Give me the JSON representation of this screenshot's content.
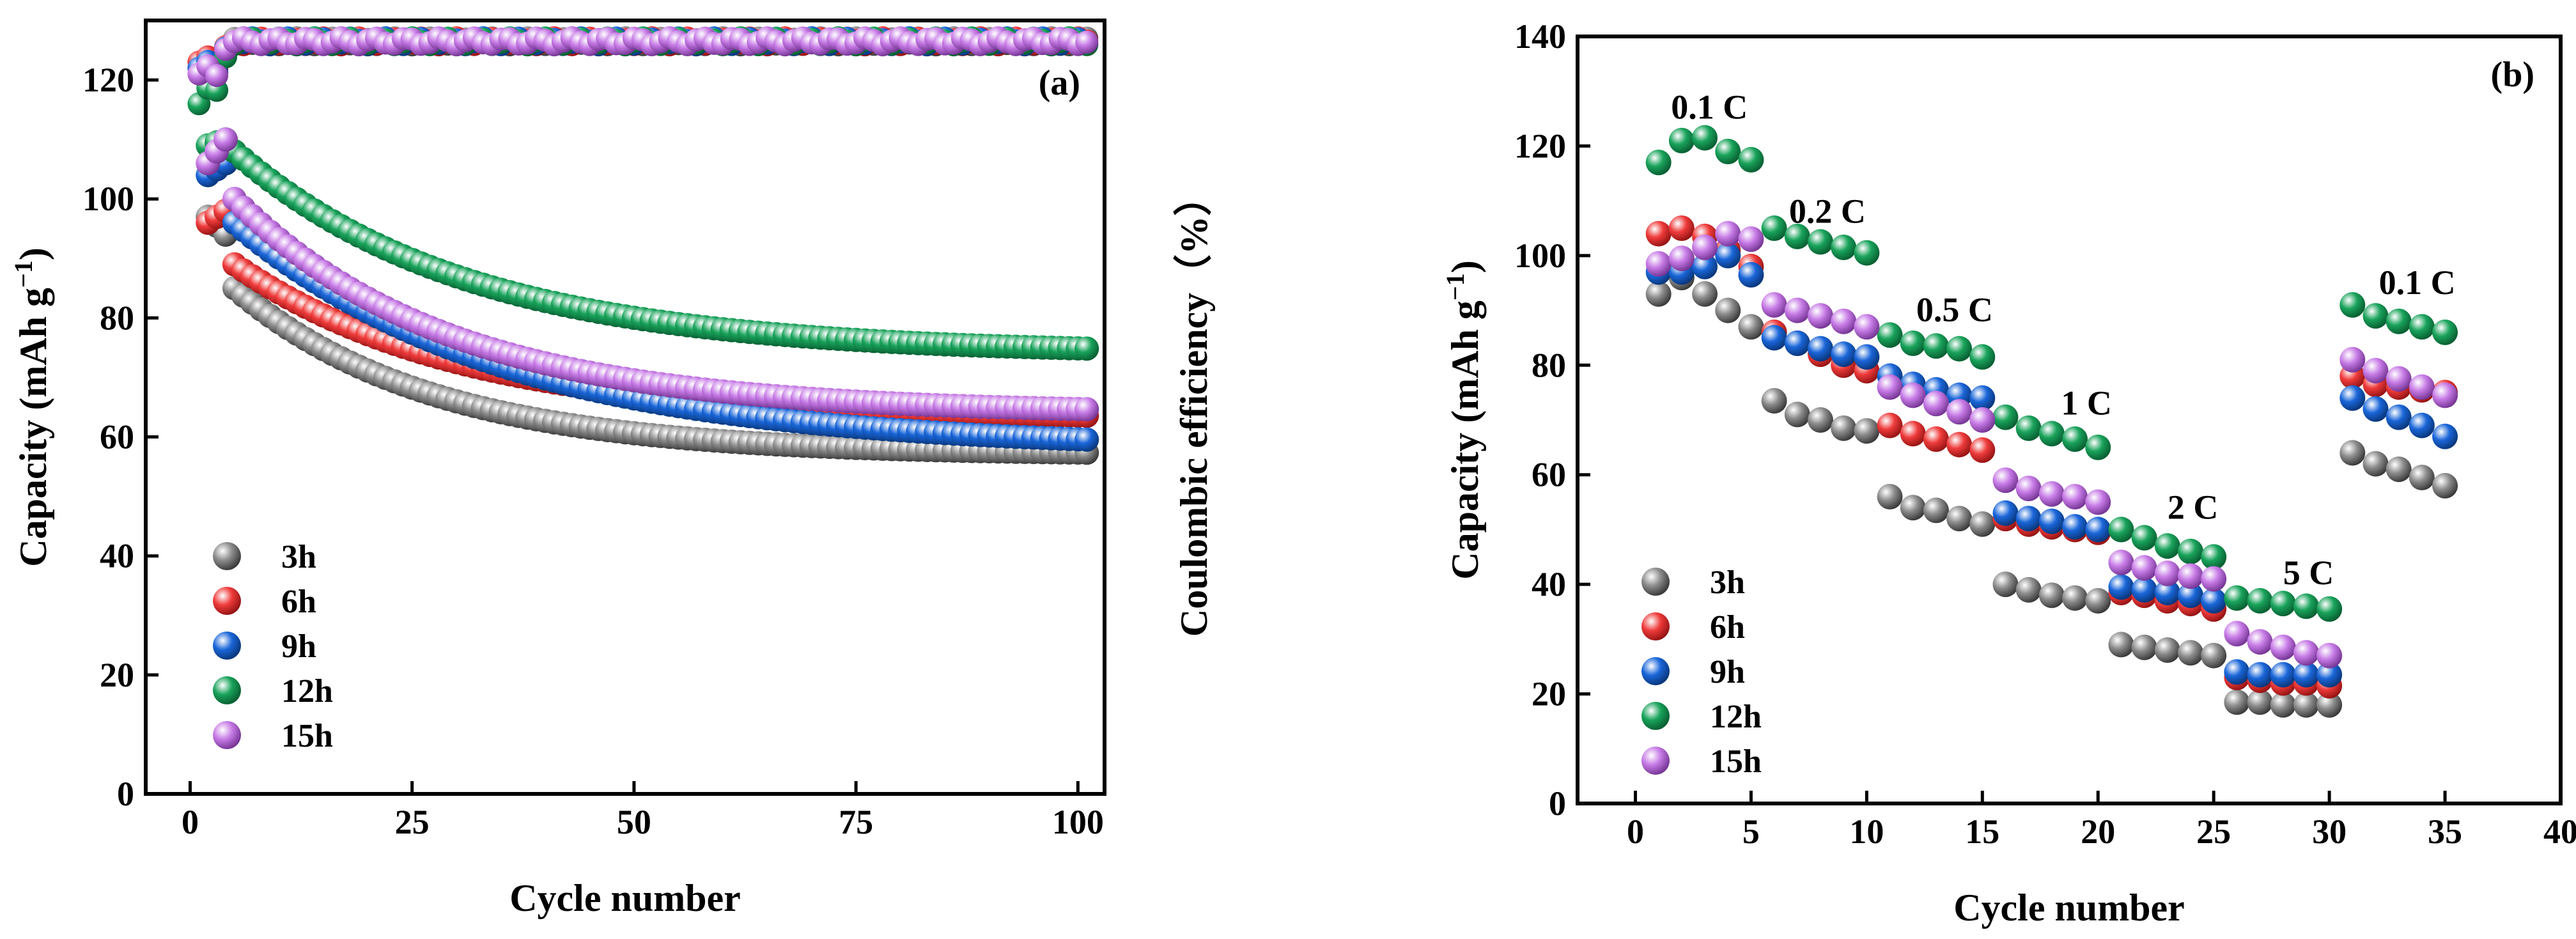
{
  "chart_data": [
    {
      "type": "scatter",
      "panel_label": "(a)",
      "xlabel": "Cycle number",
      "ylabel": "Capacity (mAh g",
      "ylabel_sup": "−1",
      "ylabel_close": ")",
      "y2label": "Coulombic efficiency（%）",
      "xlim": [
        -5,
        103
      ],
      "ylim": [
        0,
        130
      ],
      "xticks": [
        0,
        25,
        50,
        75,
        100
      ],
      "yticks": [
        0,
        20,
        40,
        60,
        80,
        100,
        120
      ],
      "legend_position": "lower-left",
      "series": [
        {
          "name": "3h",
          "color": "#8c8c8c",
          "start": 97,
          "first": 94,
          "drop": 85,
          "end": 57,
          "k": 22,
          "ce_start": 122
        },
        {
          "name": "6h",
          "color": "#ef3b3b",
          "start": 96,
          "first": 98,
          "drop": 89,
          "end": 63,
          "k": 25,
          "ce_start": 123
        },
        {
          "name": "9h",
          "color": "#1a66d9",
          "start": 104,
          "first": 106,
          "drop": 96,
          "end": 58,
          "k": 30,
          "ce_start": 122
        },
        {
          "name": "12h",
          "color": "#19a35b",
          "start": 109,
          "first": 110,
          "drop": 108,
          "end": 74,
          "k": 26,
          "ce_start": 116
        },
        {
          "name": "15h",
          "color": "#c77be6",
          "start": 106,
          "first": 110,
          "drop": 100,
          "end": 64,
          "k": 24,
          "ce_start": 121
        }
      ],
      "coulombic_efficiency_plateau": 126.5
    },
    {
      "type": "scatter",
      "panel_label": "(b)",
      "xlabel": "Cycle number",
      "ylabel": "Capacity (mAh g",
      "ylabel_sup": "−1",
      "ylabel_close": ")",
      "xlim": [
        -2.5,
        40
      ],
      "ylim": [
        0,
        140
      ],
      "xticks": [
        0,
        5,
        10,
        15,
        20,
        25,
        30,
        35,
        40
      ],
      "yticks": [
        0,
        20,
        40,
        60,
        80,
        100,
        120,
        140
      ],
      "legend_position": "lower-left",
      "rate_labels": [
        {
          "text": "0.1 C",
          "x": 3.2,
          "y": 125
        },
        {
          "text": "0.2 C",
          "x": 8.3,
          "y": 106
        },
        {
          "text": "0.5 C",
          "x": 13.8,
          "y": 88
        },
        {
          "text": "1 C",
          "x": 19.5,
          "y": 71
        },
        {
          "text": "2 C",
          "x": 24.1,
          "y": 52
        },
        {
          "text": "5 C",
          "x": 29.1,
          "y": 40
        },
        {
          "text": "0.1 C",
          "x": 33.8,
          "y": 93
        }
      ],
      "series": [
        {
          "name": "3h",
          "color": "#8c8c8c",
          "values": [
            93,
            96,
            93,
            90,
            87,
            73.5,
            71,
            70,
            68.5,
            68,
            56,
            54,
            53.5,
            52,
            51,
            40,
            39,
            38,
            37.5,
            37,
            29,
            28.5,
            28,
            27.5,
            27,
            18.5,
            18.5,
            18,
            18,
            18,
            64,
            62,
            61,
            59.5,
            58
          ]
        },
        {
          "name": "6h",
          "color": "#ef3b3b",
          "values": [
            104,
            105,
            103.5,
            101,
            98,
            86,
            84,
            82,
            80,
            79,
            69,
            67.5,
            66.5,
            65.5,
            64.5,
            52,
            51,
            50.5,
            50,
            49.5,
            38.5,
            38,
            37,
            36.5,
            35.5,
            23,
            22.5,
            22,
            22,
            21.5,
            78,
            76.5,
            76,
            75.5,
            75
          ]
        },
        {
          "name": "9h",
          "color": "#1a66d9",
          "values": [
            97,
            97,
            98,
            100,
            96.5,
            85,
            84,
            83,
            82,
            81.5,
            78,
            76.5,
            75.5,
            74.5,
            74,
            53,
            52,
            51.5,
            50.5,
            50,
            39.5,
            39,
            38.5,
            38,
            37,
            24,
            23.5,
            23.5,
            23.5,
            23.5,
            74,
            72,
            70.5,
            69,
            67
          ]
        },
        {
          "name": "12h",
          "color": "#19a35b",
          "values": [
            117,
            121,
            121.5,
            119,
            117.5,
            105,
            103.5,
            102.5,
            101.5,
            100.5,
            85.5,
            84,
            83.5,
            83,
            81.5,
            70.5,
            68.5,
            67.5,
            66.5,
            65,
            50,
            48.5,
            47,
            46,
            45,
            37.5,
            37,
            36.5,
            36,
            35.5,
            91,
            89,
            88,
            87,
            86
          ]
        },
        {
          "name": "15h",
          "color": "#c77be6",
          "values": [
            98.5,
            99.5,
            101.5,
            104,
            103,
            91,
            90,
            89,
            88,
            87,
            76,
            74.5,
            73,
            71.5,
            70,
            59,
            57.5,
            56.5,
            56,
            55,
            44,
            43,
            42,
            41.5,
            41,
            31,
            29.5,
            28.5,
            27.5,
            27,
            81,
            79,
            77.5,
            76,
            74.5
          ]
        }
      ]
    }
  ]
}
